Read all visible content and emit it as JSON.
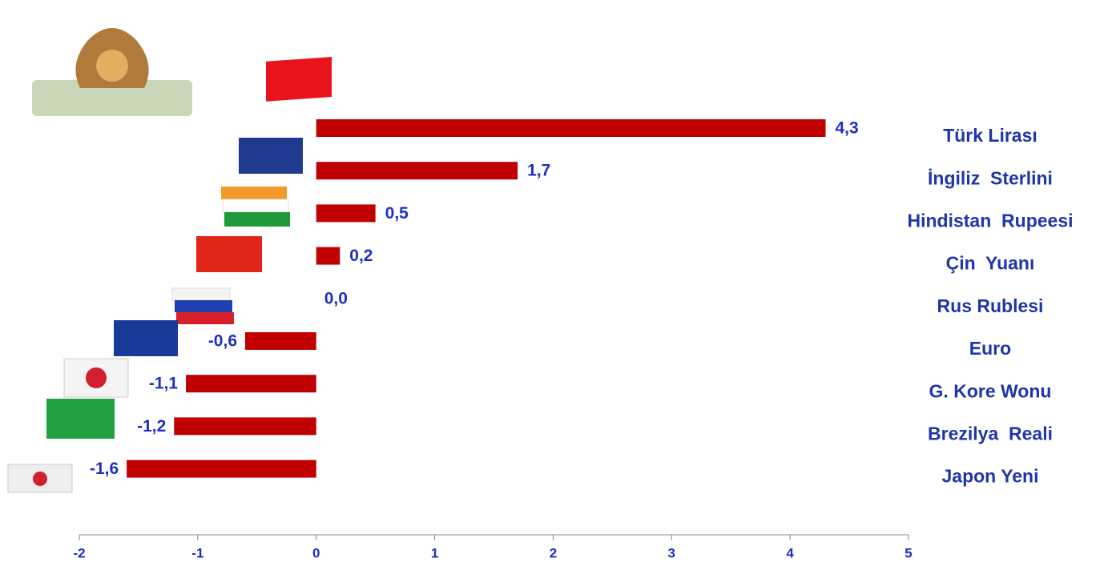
{
  "chart_data": {
    "type": "barh",
    "categories": [
      "Türk Lirası",
      "İngiliz  Sterlini",
      "Hindistan  Rupeesi",
      "Çin  Yuanı",
      "Rus Rublesi",
      "Euro",
      "G. Kore Wonu",
      "Brezilya  Reali",
      "Japon Yeni"
    ],
    "values": [
      4.3,
      1.7,
      0.5,
      0.2,
      0.0,
      -0.6,
      -1.1,
      -1.2,
      -1.6
    ],
    "value_labels": [
      "4,3",
      "1,7",
      "0,5",
      "0,2",
      "0,0",
      "-0,6",
      "-1,1",
      "-1,2",
      "-1,6"
    ],
    "color": "#c00000",
    "xlim": [
      -2,
      5
    ],
    "xticks": [
      -2,
      -1,
      0,
      1,
      2,
      3,
      4,
      5
    ],
    "grid": false
  }
}
